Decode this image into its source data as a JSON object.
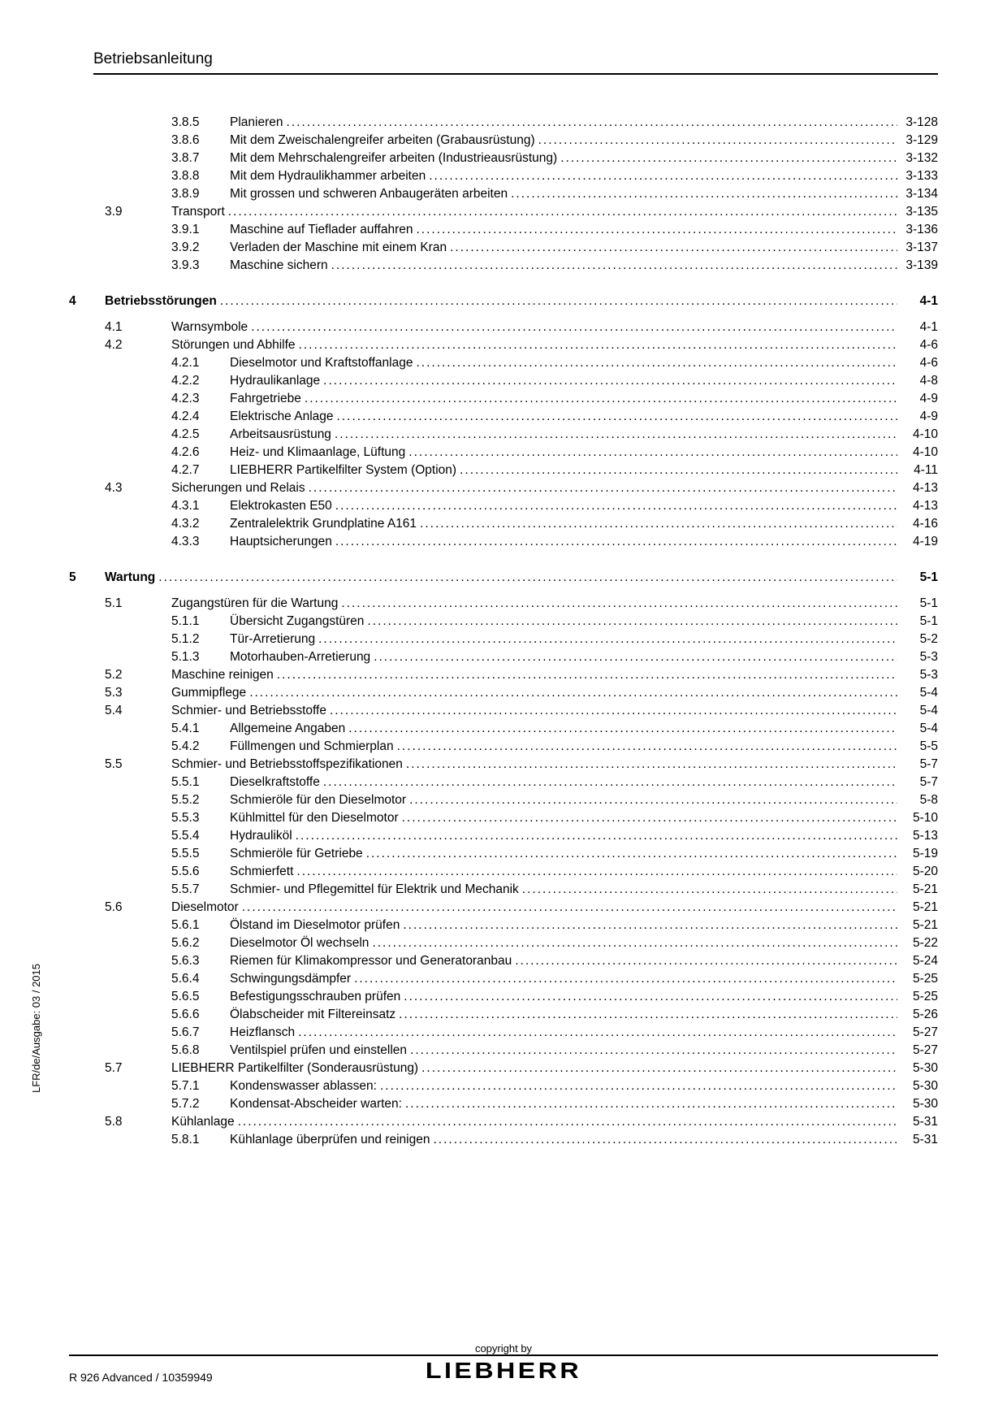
{
  "header": {
    "title": "Betriebsanleitung"
  },
  "toc": [
    {
      "type": "sub",
      "num": "3.8.5",
      "text": "Planieren",
      "page": "3-128"
    },
    {
      "type": "sub",
      "num": "3.8.6",
      "text": "Mit dem Zweischalengreifer arbeiten (Grabausrüstung)",
      "page": "3-129"
    },
    {
      "type": "sub",
      "num": "3.8.7",
      "text": "Mit dem Mehrschalengreifer arbeiten (Industrieausrüstung)",
      "page": "3-132"
    },
    {
      "type": "sub",
      "num": "3.8.8",
      "text": "Mit dem Hydraulikhammer arbeiten",
      "page": "3-133"
    },
    {
      "type": "sub",
      "num": "3.8.9",
      "text": "Mit grossen und schweren Anbaugeräten arbeiten",
      "page": "3-134"
    },
    {
      "type": "sec",
      "num": "3.9",
      "text": "Transport",
      "page": "3-135"
    },
    {
      "type": "sub",
      "num": "3.9.1",
      "text": "Maschine auf Tieflader auffahren",
      "page": "3-136"
    },
    {
      "type": "sub",
      "num": "3.9.2",
      "text": "Verladen der Maschine mit einem Kran",
      "page": "3-137"
    },
    {
      "type": "sub",
      "num": "3.9.3",
      "text": "Maschine sichern",
      "page": "3-139"
    },
    {
      "type": "chap",
      "num": "4",
      "text": "Betriebsstörungen",
      "page": "4-1"
    },
    {
      "type": "sec",
      "num": "4.1",
      "text": "Warnsymbole",
      "page": "4-1"
    },
    {
      "type": "sec",
      "num": "4.2",
      "text": "Störungen und Abhilfe",
      "page": "4-6"
    },
    {
      "type": "sub",
      "num": "4.2.1",
      "text": "Dieselmotor und Kraftstoffanlage",
      "page": "4-6"
    },
    {
      "type": "sub",
      "num": "4.2.2",
      "text": "Hydraulikanlage",
      "page": "4-8"
    },
    {
      "type": "sub",
      "num": "4.2.3",
      "text": "Fahrgetriebe",
      "page": "4-9"
    },
    {
      "type": "sub",
      "num": "4.2.4",
      "text": "Elektrische Anlage",
      "page": "4-9"
    },
    {
      "type": "sub",
      "num": "4.2.5",
      "text": "Arbeitsausrüstung",
      "page": "4-10"
    },
    {
      "type": "sub",
      "num": "4.2.6",
      "text": "Heiz- und Klimaanlage, Lüftung",
      "page": "4-10"
    },
    {
      "type": "sub",
      "num": "4.2.7",
      "text": "LIEBHERR Partikelfilter System (Option)",
      "page": "4-11"
    },
    {
      "type": "sec",
      "num": "4.3",
      "text": "Sicherungen und Relais",
      "page": "4-13"
    },
    {
      "type": "sub",
      "num": "4.3.1",
      "text": "Elektrokasten E50",
      "page": "4-13"
    },
    {
      "type": "sub",
      "num": "4.3.2",
      "text": "Zentralelektrik Grundplatine A161",
      "page": "4-16"
    },
    {
      "type": "sub",
      "num": "4.3.3",
      "text": "Hauptsicherungen",
      "page": "4-19"
    },
    {
      "type": "chap",
      "num": "5",
      "text": "Wartung",
      "page": "5-1"
    },
    {
      "type": "sec",
      "num": "5.1",
      "text": "Zugangstüren für die Wartung",
      "page": "5-1"
    },
    {
      "type": "sub",
      "num": "5.1.1",
      "text": "Übersicht Zugangstüren",
      "page": "5-1"
    },
    {
      "type": "sub",
      "num": "5.1.2",
      "text": "Tür-Arretierung",
      "page": "5-2"
    },
    {
      "type": "sub",
      "num": "5.1.3",
      "text": "Motorhauben-Arretierung",
      "page": "5-3"
    },
    {
      "type": "sec",
      "num": "5.2",
      "text": "Maschine reinigen",
      "page": "5-3"
    },
    {
      "type": "sec",
      "num": "5.3",
      "text": "Gummipflege",
      "page": "5-4"
    },
    {
      "type": "sec",
      "num": "5.4",
      "text": "Schmier- und Betriebsstoffe",
      "page": "5-4"
    },
    {
      "type": "sub",
      "num": "5.4.1",
      "text": "Allgemeine Angaben",
      "page": "5-4"
    },
    {
      "type": "sub",
      "num": "5.4.2",
      "text": "Füllmengen und Schmierplan",
      "page": "5-5"
    },
    {
      "type": "sec",
      "num": "5.5",
      "text": "Schmier- und Betriebsstoffspezifikationen",
      "page": "5-7"
    },
    {
      "type": "sub",
      "num": "5.5.1",
      "text": "Dieselkraftstoffe",
      "page": "5-7"
    },
    {
      "type": "sub",
      "num": "5.5.2",
      "text": "Schmieröle für den Dieselmotor",
      "page": "5-8"
    },
    {
      "type": "sub",
      "num": "5.5.3",
      "text": "Kühlmittel für den Dieselmotor",
      "page": "5-10"
    },
    {
      "type": "sub",
      "num": "5.5.4",
      "text": "Hydrauliköl",
      "page": "5-13"
    },
    {
      "type": "sub",
      "num": "5.5.5",
      "text": "Schmieröle für Getriebe",
      "page": "5-19"
    },
    {
      "type": "sub",
      "num": "5.5.6",
      "text": "Schmierfett",
      "page": "5-20"
    },
    {
      "type": "sub",
      "num": "5.5.7",
      "text": "Schmier- und Pflegemittel für Elektrik und Mechanik",
      "page": "5-21"
    },
    {
      "type": "sec",
      "num": "5.6",
      "text": "Dieselmotor",
      "page": "5-21"
    },
    {
      "type": "sub",
      "num": "5.6.1",
      "text": "Ölstand im Dieselmotor prüfen",
      "page": "5-21"
    },
    {
      "type": "sub",
      "num": "5.6.2",
      "text": "Dieselmotor Öl wechseln",
      "page": "5-22"
    },
    {
      "type": "sub",
      "num": "5.6.3",
      "text": "Riemen für Klimakompressor und Generatoranbau",
      "page": "5-24"
    },
    {
      "type": "sub",
      "num": "5.6.4",
      "text": "Schwingungsdämpfer",
      "page": "5-25"
    },
    {
      "type": "sub",
      "num": "5.6.5",
      "text": "Befestigungsschrauben prüfen",
      "page": "5-25"
    },
    {
      "type": "sub",
      "num": "5.6.6",
      "text": "Ölabscheider mit Filtereinsatz",
      "page": "5-26"
    },
    {
      "type": "sub",
      "num": "5.6.7",
      "text": "Heizflansch",
      "page": "5-27"
    },
    {
      "type": "sub",
      "num": "5.6.8",
      "text": "Ventilspiel prüfen und einstellen",
      "page": "5-27"
    },
    {
      "type": "sec",
      "num": "5.7",
      "text": "LIEBHERR Partikelfilter (Sonderausrüstung)",
      "page": "5-30"
    },
    {
      "type": "sub",
      "num": "5.7.1",
      "text": "Kondenswasser ablassen:",
      "page": "5-30"
    },
    {
      "type": "sub",
      "num": "5.7.2",
      "text": "Kondensat-Abscheider warten:",
      "page": "5-30"
    },
    {
      "type": "sec",
      "num": "5.8",
      "text": "Kühlanlage",
      "page": "5-31"
    },
    {
      "type": "sub",
      "num": "5.8.1",
      "text": "Kühlanlage überprüfen und reinigen",
      "page": "5-31"
    }
  ],
  "sideText": "LFR/de/Ausgabe: 03 / 2015",
  "footer": {
    "left": "R 926 Advanced / 10359949",
    "copyright": "copyright by",
    "brand": "LIEBHERR"
  }
}
